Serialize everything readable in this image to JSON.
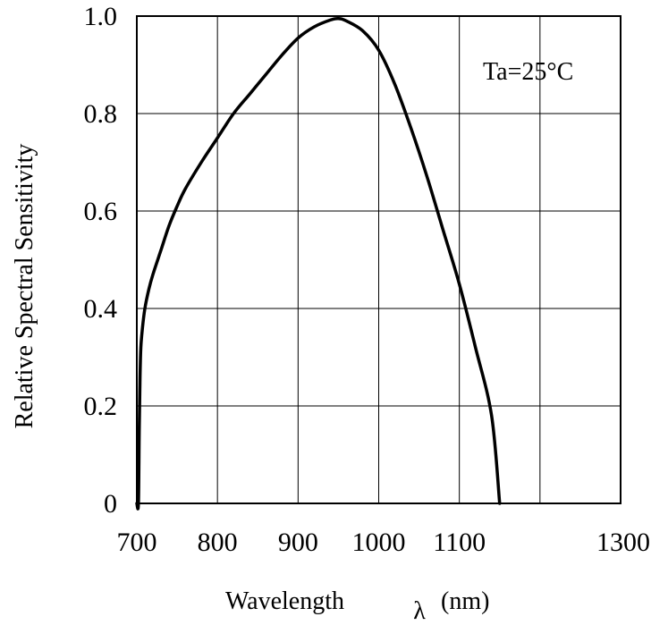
{
  "chart_data": {
    "type": "line",
    "title": "",
    "xlabel": "Wavelength",
    "xlabel_symbol": "λ",
    "xlabel_unit": "(nm)",
    "ylabel": "Relative Spectral Sensitivity",
    "annotation": "Ta=25°C",
    "xlim": [
      700,
      1300
    ],
    "ylim": [
      0,
      1.0
    ],
    "x_ticks": [
      "700",
      "800",
      "900",
      "1000",
      "1100",
      "1300"
    ],
    "y_ticks": [
      "0",
      "0.2",
      "0.4",
      "0.6",
      "0.8",
      "1.0"
    ],
    "grid": true,
    "series": [
      {
        "x": [
          700,
          702,
          703,
          704,
          705,
          707,
          710,
          715,
          720,
          730,
          740,
          750,
          760,
          780,
          800,
          820,
          840,
          860,
          880,
          900,
          920,
          940,
          950,
          960,
          980,
          1000,
          1020,
          1040,
          1060,
          1080,
          1100,
          1120,
          1140,
          1150
        ],
        "y": [
          0,
          0,
          0.15,
          0.26,
          0.32,
          0.36,
          0.4,
          0.44,
          0.47,
          0.52,
          0.57,
          0.61,
          0.645,
          0.7,
          0.75,
          0.8,
          0.84,
          0.88,
          0.92,
          0.955,
          0.978,
          0.992,
          0.995,
          0.99,
          0.97,
          0.93,
          0.86,
          0.77,
          0.67,
          0.56,
          0.45,
          0.32,
          0.18,
          0.0
        ],
        "color": "#000000"
      }
    ]
  }
}
